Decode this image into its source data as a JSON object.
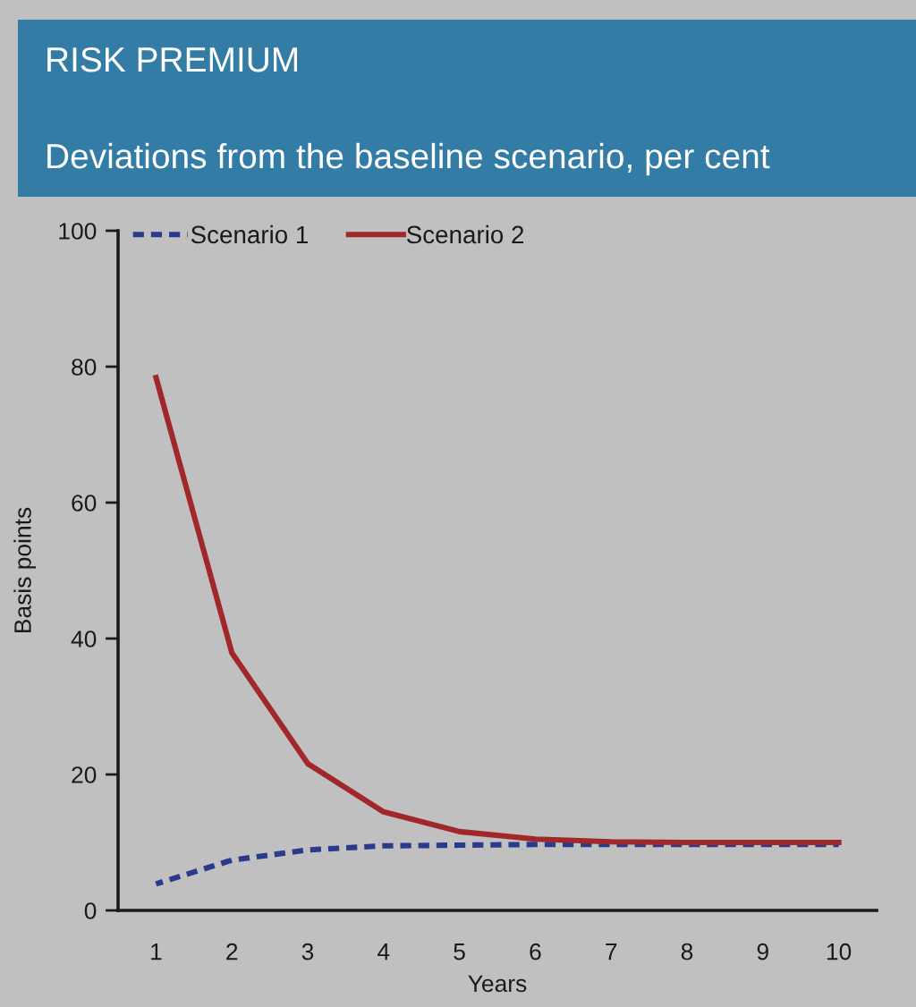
{
  "chart_data": {
    "type": "line",
    "title": "RISK PREMIUM",
    "subtitle": "Deviations from the baseline scenario, per cent",
    "xlabel": "Years",
    "ylabel": "Basis points",
    "categories": [
      "1",
      "2",
      "3",
      "4",
      "5",
      "6",
      "7",
      "8",
      "9",
      "10"
    ],
    "ylim": [
      0,
      100
    ],
    "yticks": [
      0,
      20,
      40,
      60,
      80,
      100
    ],
    "grid": false,
    "legend": "top left",
    "marker": "none",
    "series": [
      {
        "name": "Scenario 1",
        "color": "#2b3a8c",
        "line_style": "dashed",
        "values": [
          3.9,
          7.4,
          8.9,
          9.5,
          9.6,
          9.7,
          9.7,
          9.7,
          9.7,
          9.7
        ]
      },
      {
        "name": "Scenario 2",
        "color": "#a0282a",
        "line_style": "solid",
        "values": [
          78.4,
          37.9,
          21.6,
          14.5,
          11.6,
          10.5,
          10.1,
          10.0,
          10.0,
          10.0
        ]
      }
    ]
  }
}
